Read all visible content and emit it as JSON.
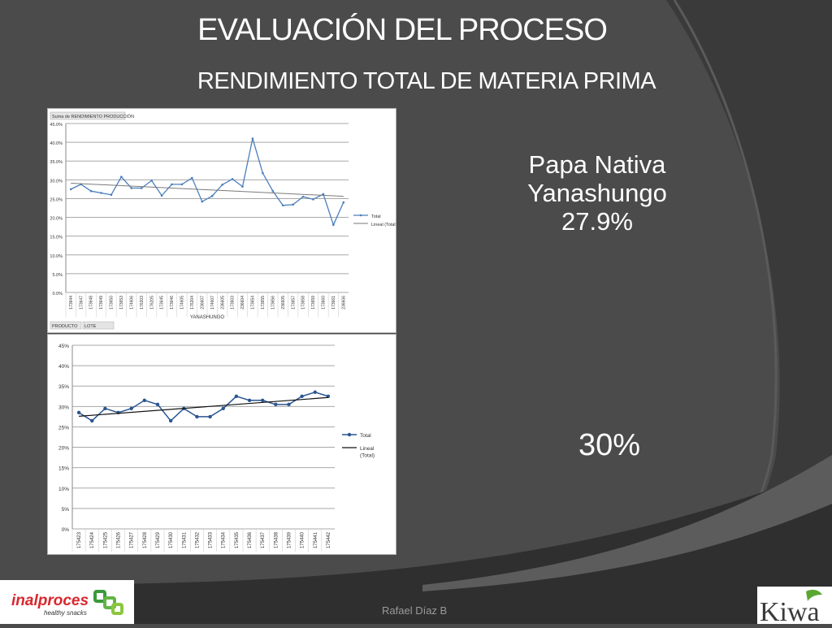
{
  "slide": {
    "title": "EVALUACIÓN DEL PROCESO",
    "subtitle": "RENDIMIENTO  TOTAL DE MATERIA PRIMA",
    "product_line1": "Papa Nativa",
    "product_line2": "Yanashungo",
    "product_pct": "27.9%",
    "second_pct": "30%",
    "author": "Rafael Díaz B",
    "colors": {
      "background": "#4a4a4a",
      "accent_dark": "#2e2e2e",
      "series1": "#4a7ebb",
      "series2": "#2a5590"
    }
  },
  "logos": {
    "left_name": "inalproces",
    "left_tagline": "healthy snacks",
    "right_name": "Kiwa"
  },
  "chart_data": [
    {
      "type": "line",
      "field_button": "Suma de RENDIMIENTO PRODUCCIÓN",
      "xlabel": "YANASHUNGO",
      "filter_buttons": [
        "PRODUCTO",
        "LOTE"
      ],
      "ylim": [
        0,
        45
      ],
      "yticks": [
        "0.0%",
        "5.0%",
        "10.0%",
        "15.0%",
        "20.0%",
        "25.0%",
        "30.0%",
        "35.0%",
        "40.0%",
        "45.0%"
      ],
      "categories": [
        "173644",
        "173647",
        "173648",
        "173649",
        "173650",
        "173653",
        "174606",
        "176203",
        "176205",
        "173645",
        "173646",
        "174605",
        "176204",
        "236607",
        "174607",
        "236605",
        "173603",
        "236604",
        "173654",
        "173655",
        "173656",
        "236605",
        "173657",
        "173658",
        "173659",
        "173660",
        "173661",
        "236606"
      ],
      "series": [
        {
          "name": "Total",
          "values": [
            27.5,
            28.8,
            27.0,
            26.5,
            26.0,
            30.8,
            27.8,
            27.8,
            29.8,
            25.8,
            28.8,
            28.8,
            30.5,
            24.2,
            25.7,
            28.7,
            30.2,
            28.2,
            41.0,
            31.8,
            27.0,
            23.2,
            23.4,
            25.5,
            24.8,
            26.2,
            18.0,
            24.0
          ]
        },
        {
          "name": "Lineal (Total)",
          "trend": [
            29.1,
            25.6
          ]
        }
      ],
      "grid": true,
      "legend": "right"
    },
    {
      "type": "line",
      "ylim": [
        0,
        45
      ],
      "yticks": [
        "0%",
        "5%",
        "10%",
        "15%",
        "20%",
        "25%",
        "30%",
        "35%",
        "40%",
        "45%"
      ],
      "categories": [
        "175423",
        "175424",
        "175425",
        "175426",
        "175427",
        "175428",
        "175429",
        "175430",
        "175431",
        "175432",
        "175433",
        "175434",
        "175435",
        "175436",
        "175437",
        "175438",
        "175439",
        "175440",
        "175441",
        "175442"
      ],
      "series": [
        {
          "name": "Total",
          "values": [
            28.5,
            26.5,
            29.5,
            28.5,
            29.5,
            31.5,
            30.5,
            26.5,
            29.5,
            27.5,
            27.5,
            29.5,
            32.5,
            31.5,
            31.5,
            30.5,
            30.5,
            32.5,
            33.5,
            32.5
          ]
        },
        {
          "name": "Lineal (Total)",
          "name_lines": [
            "Lineal",
            "(Total)"
          ],
          "trend": [
            27.6,
            32.2
          ]
        }
      ],
      "grid": true,
      "legend": "right"
    }
  ]
}
